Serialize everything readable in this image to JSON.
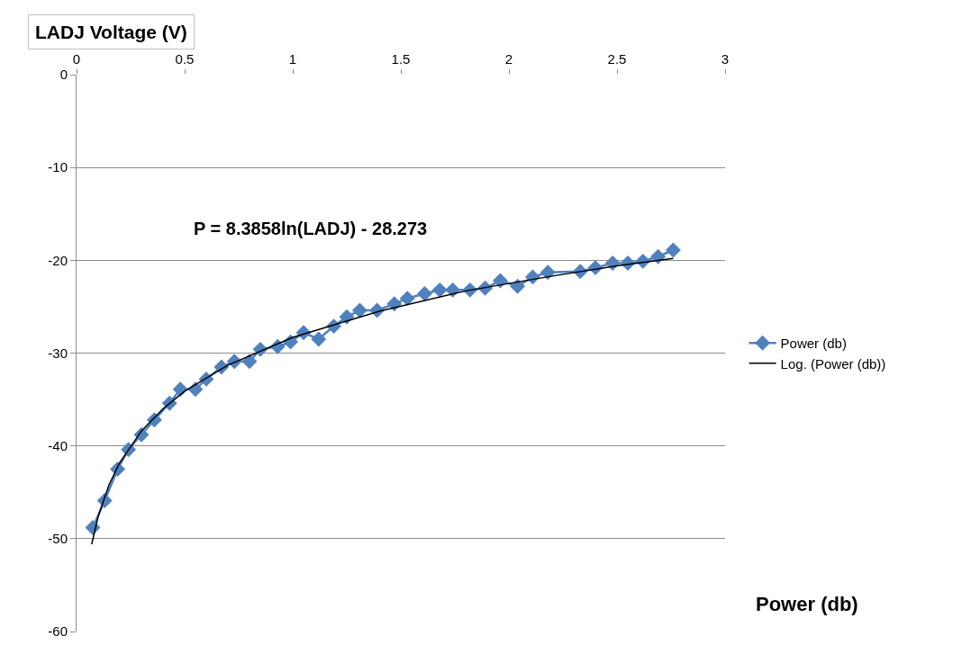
{
  "chart_data": {
    "type": "line",
    "title": "LADJ Voltage (V)",
    "ylabel": "Power (db)",
    "annotations": [
      "P = 8.3858ln(LADJ) - 28.273"
    ],
    "xlim": [
      0,
      3
    ],
    "xticks": [
      0,
      0.5,
      1,
      1.5,
      2,
      2.5,
      3
    ],
    "ylim": [
      -60,
      0
    ],
    "yticks": [
      -60,
      -50,
      -40,
      -30,
      -20,
      -10,
      0
    ],
    "grid": "y",
    "legend": "right",
    "marker": "diamond",
    "series": [
      {
        "name": "Power (db)",
        "color": "#4f81bd",
        "x": [
          0.075,
          0.13,
          0.19,
          0.24,
          0.3,
          0.36,
          0.43,
          0.48,
          0.55,
          0.6,
          0.67,
          0.73,
          0.8,
          0.85,
          0.93,
          0.99,
          1.05,
          1.12,
          1.19,
          1.25,
          1.31,
          1.39,
          1.47,
          1.53,
          1.61,
          1.68,
          1.74,
          1.82,
          1.89,
          1.96,
          2.04,
          2.11,
          2.18,
          2.33,
          2.4,
          2.48,
          2.55,
          2.62,
          2.69,
          2.76
        ],
        "values": [
          -48.8,
          -45.9,
          -42.5,
          -40.4,
          -38.8,
          -37.2,
          -35.4,
          -33.9,
          -33.9,
          -32.8,
          -31.5,
          -30.9,
          -30.9,
          -29.6,
          -29.3,
          -28.8,
          -27.8,
          -28.5,
          -27.1,
          -26.1,
          -25.4,
          -25.4,
          -24.7,
          -24.1,
          -23.6,
          -23.2,
          -23.2,
          -23.2,
          -23.0,
          -22.2,
          -22.8,
          -21.8,
          -21.3,
          -21.2,
          -20.8,
          -20.3,
          -20.3,
          -20.1,
          -19.6,
          -18.9
        ]
      },
      {
        "name": "Log. (Power (db))",
        "color": "#000000",
        "marker": "none",
        "x": [
          0.07,
          0.1,
          0.15,
          0.2,
          0.3,
          0.4,
          0.5,
          0.7,
          1.0,
          1.4,
          1.8,
          2.2,
          2.5,
          2.76
        ],
        "values": [
          -50.6,
          -47.6,
          -44.2,
          -41.8,
          -38.4,
          -36.0,
          -34.1,
          -31.3,
          -28.3,
          -25.5,
          -23.3,
          -21.7,
          -20.6,
          -19.8
        ]
      }
    ]
  }
}
